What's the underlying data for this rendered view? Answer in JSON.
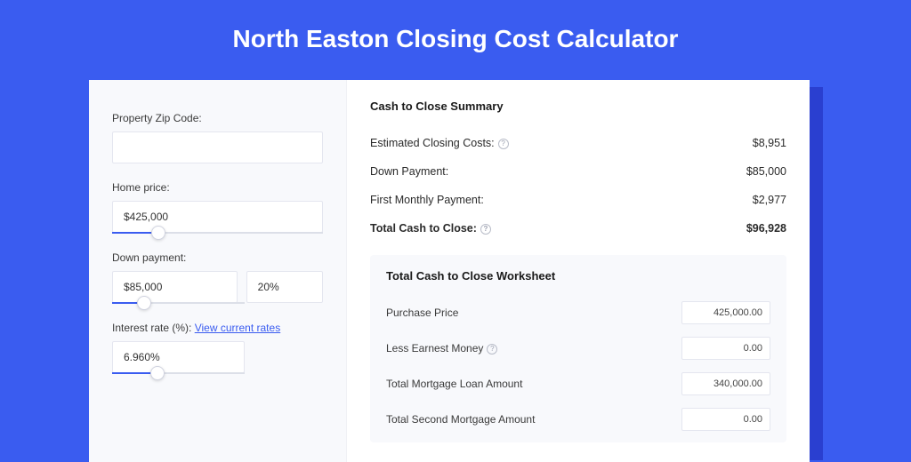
{
  "colors": {
    "page_bg": "#3a5cf0",
    "card_bg": "#ffffff",
    "left_bg": "#f8f9fc",
    "shadow_bg": "#2a3fd0",
    "text_primary": "#1a1a1a",
    "text_secondary": "#3a3a3a",
    "input_border": "#e4e6ef",
    "slider_track": "#dcdfe8",
    "slider_fill": "#3a5cf0",
    "link": "#3a5cf0",
    "help_border": "#b8bcc8"
  },
  "header": {
    "title": "North Easton Closing Cost Calculator"
  },
  "form": {
    "zip": {
      "label": "Property Zip Code:",
      "value": ""
    },
    "home_price": {
      "label": "Home price:",
      "value": "$425,000",
      "slider_pct": 22
    },
    "down_payment": {
      "label": "Down payment:",
      "value": "$85,000",
      "pct_value": "20%",
      "slider_pct": 24
    },
    "interest": {
      "label": "Interest rate (%): ",
      "link_text": "View current rates",
      "value": "6.960%",
      "slider_pct": 34
    }
  },
  "summary": {
    "title": "Cash to Close Summary",
    "rows": [
      {
        "label": "Estimated Closing Costs:",
        "help": true,
        "value": "$8,951",
        "bold": false
      },
      {
        "label": "Down Payment:",
        "help": false,
        "value": "$85,000",
        "bold": false
      },
      {
        "label": "First Monthly Payment:",
        "help": false,
        "value": "$2,977",
        "bold": false
      },
      {
        "label": "Total Cash to Close:",
        "help": true,
        "value": "$96,928",
        "bold": true
      }
    ]
  },
  "worksheet": {
    "title": "Total Cash to Close Worksheet",
    "rows": [
      {
        "label": "Purchase Price",
        "help": false,
        "value": "425,000.00"
      },
      {
        "label": "Less Earnest Money",
        "help": true,
        "value": "0.00"
      },
      {
        "label": "Total Mortgage Loan Amount",
        "help": false,
        "value": "340,000.00"
      },
      {
        "label": "Total Second Mortgage Amount",
        "help": false,
        "value": "0.00"
      }
    ]
  }
}
